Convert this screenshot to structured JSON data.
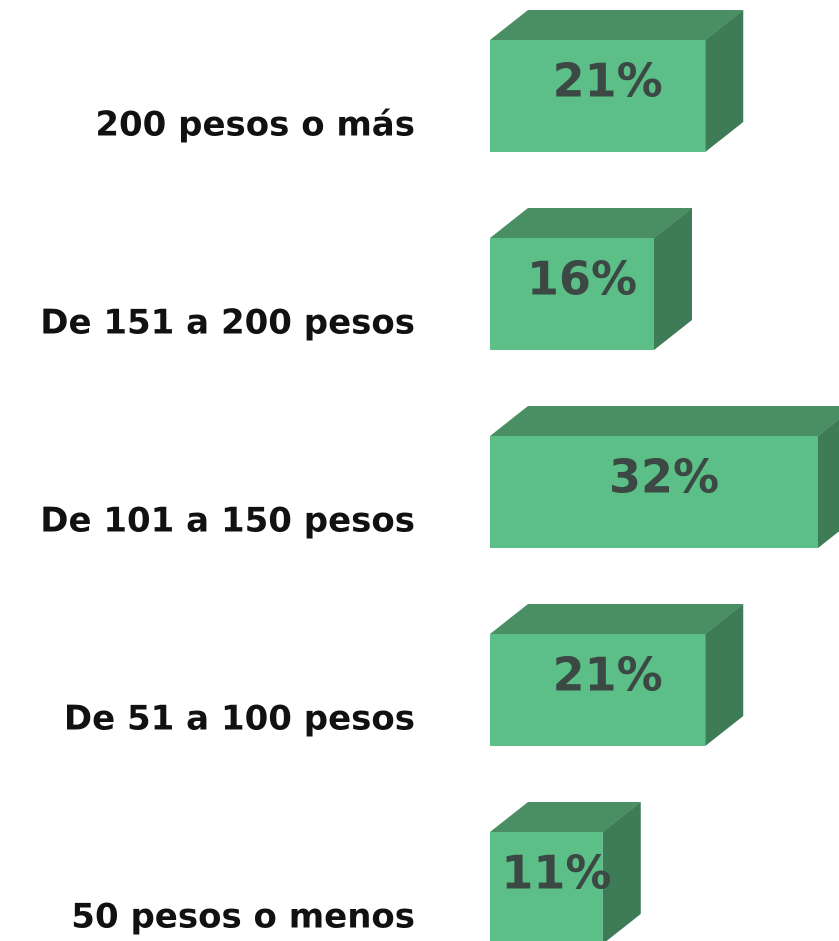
{
  "chart_data": {
    "type": "bar3d",
    "categories": [
      "200 pesos o más",
      "De 151 a 200 pesos",
      "De 101 a 150 pesos",
      "De 51 a 100 pesos",
      "50 pesos o menos"
    ],
    "values": [
      21,
      16,
      32,
      21,
      11
    ],
    "value_labels": [
      "21%",
      "16%",
      "32%",
      "21%",
      "11%"
    ],
    "color": "#5cbf87"
  }
}
